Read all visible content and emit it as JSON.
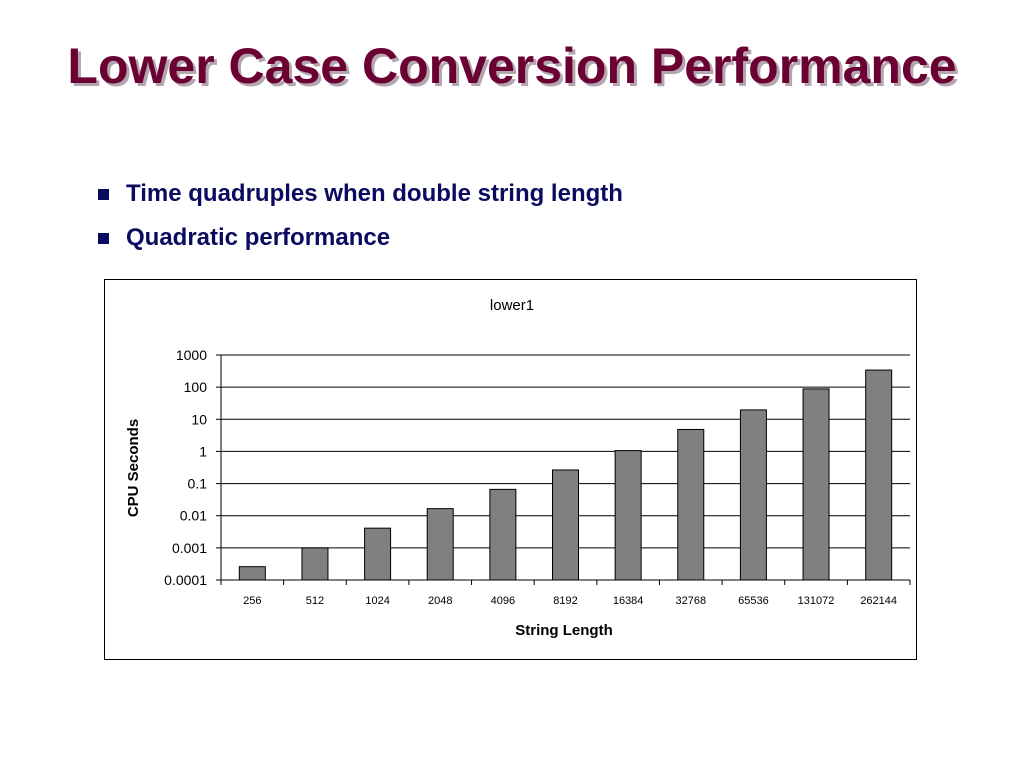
{
  "slide": {
    "title": "Lower Case Conversion Performance",
    "bullets": [
      "Time quadruples when double string length",
      "Quadratic performance"
    ]
  },
  "colors": {
    "title": "#6b0033",
    "title_shadow": "#b4a6ae",
    "bullet_text": "#0a0a60",
    "bar_fill": "#808080",
    "bar_stroke": "#000000"
  },
  "chart_data": {
    "type": "bar",
    "title": "lower1",
    "xlabel": "String Length",
    "ylabel": "CPU Seconds",
    "y_scale": "log",
    "ylim": [
      0.0001,
      1000
    ],
    "y_ticks": [
      "1000",
      "100",
      "10",
      "1",
      "0.1",
      "0.01",
      "0.001",
      "0.0001"
    ],
    "grid": true,
    "legend": "none",
    "categories": [
      "256",
      "512",
      "1024",
      "2048",
      "4096",
      "8192",
      "16384",
      "32768",
      "65536",
      "131072",
      "262144"
    ],
    "series": [
      {
        "values": [
          0.00026,
          0.001,
          0.0041,
          0.0166,
          0.066,
          0.265,
          1.06,
          4.83,
          19.6,
          88.3,
          340
        ]
      }
    ]
  }
}
